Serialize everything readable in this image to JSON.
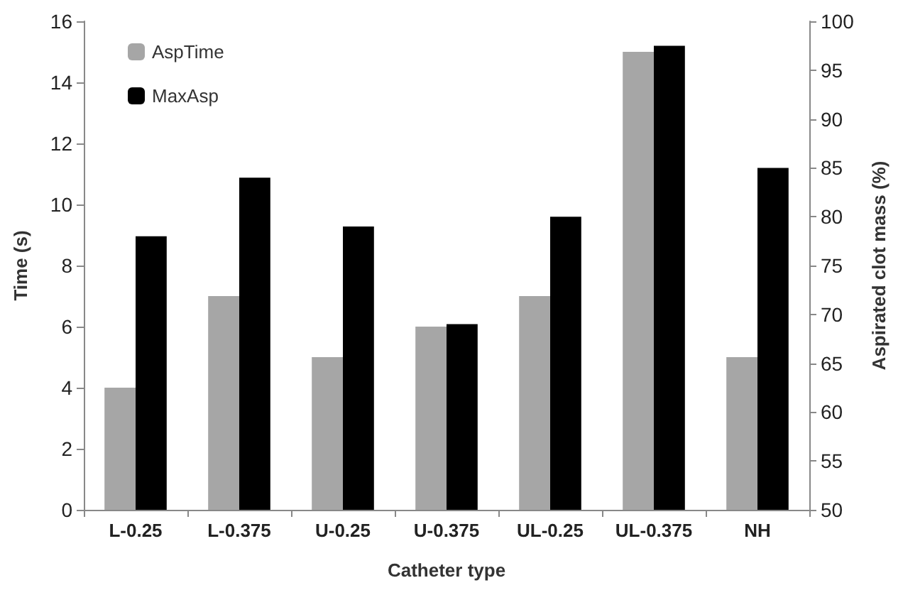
{
  "chart_data": {
    "type": "bar",
    "xlabel": "Catheter type",
    "ylabel": "Time (s)",
    "y2label": "Aspirated clot mass (%)",
    "categories": [
      "L-0.25",
      "L-0.375",
      "U-0.25",
      "U-0.375",
      "UL-0.25",
      "UL-0.375",
      "NH"
    ],
    "series": [
      {
        "name": "AspTime",
        "color": "#a6a6a6",
        "values": [
          4,
          7,
          5,
          6,
          7,
          15,
          5
        ]
      },
      {
        "name": "MaxAsp",
        "color": "#000000",
        "axis": "y2",
        "values": [
          78,
          84,
          79,
          69,
          80,
          97.5,
          85
        ]
      }
    ],
    "ylim": [
      0,
      16
    ],
    "yticks": [
      0,
      2,
      4,
      6,
      8,
      10,
      12,
      14,
      16
    ],
    "y2lim": [
      50,
      100
    ],
    "y2ticks": [
      50,
      55,
      60,
      65,
      70,
      75,
      80,
      85,
      90,
      95,
      100
    ],
    "grid": false,
    "legend": "top left"
  }
}
